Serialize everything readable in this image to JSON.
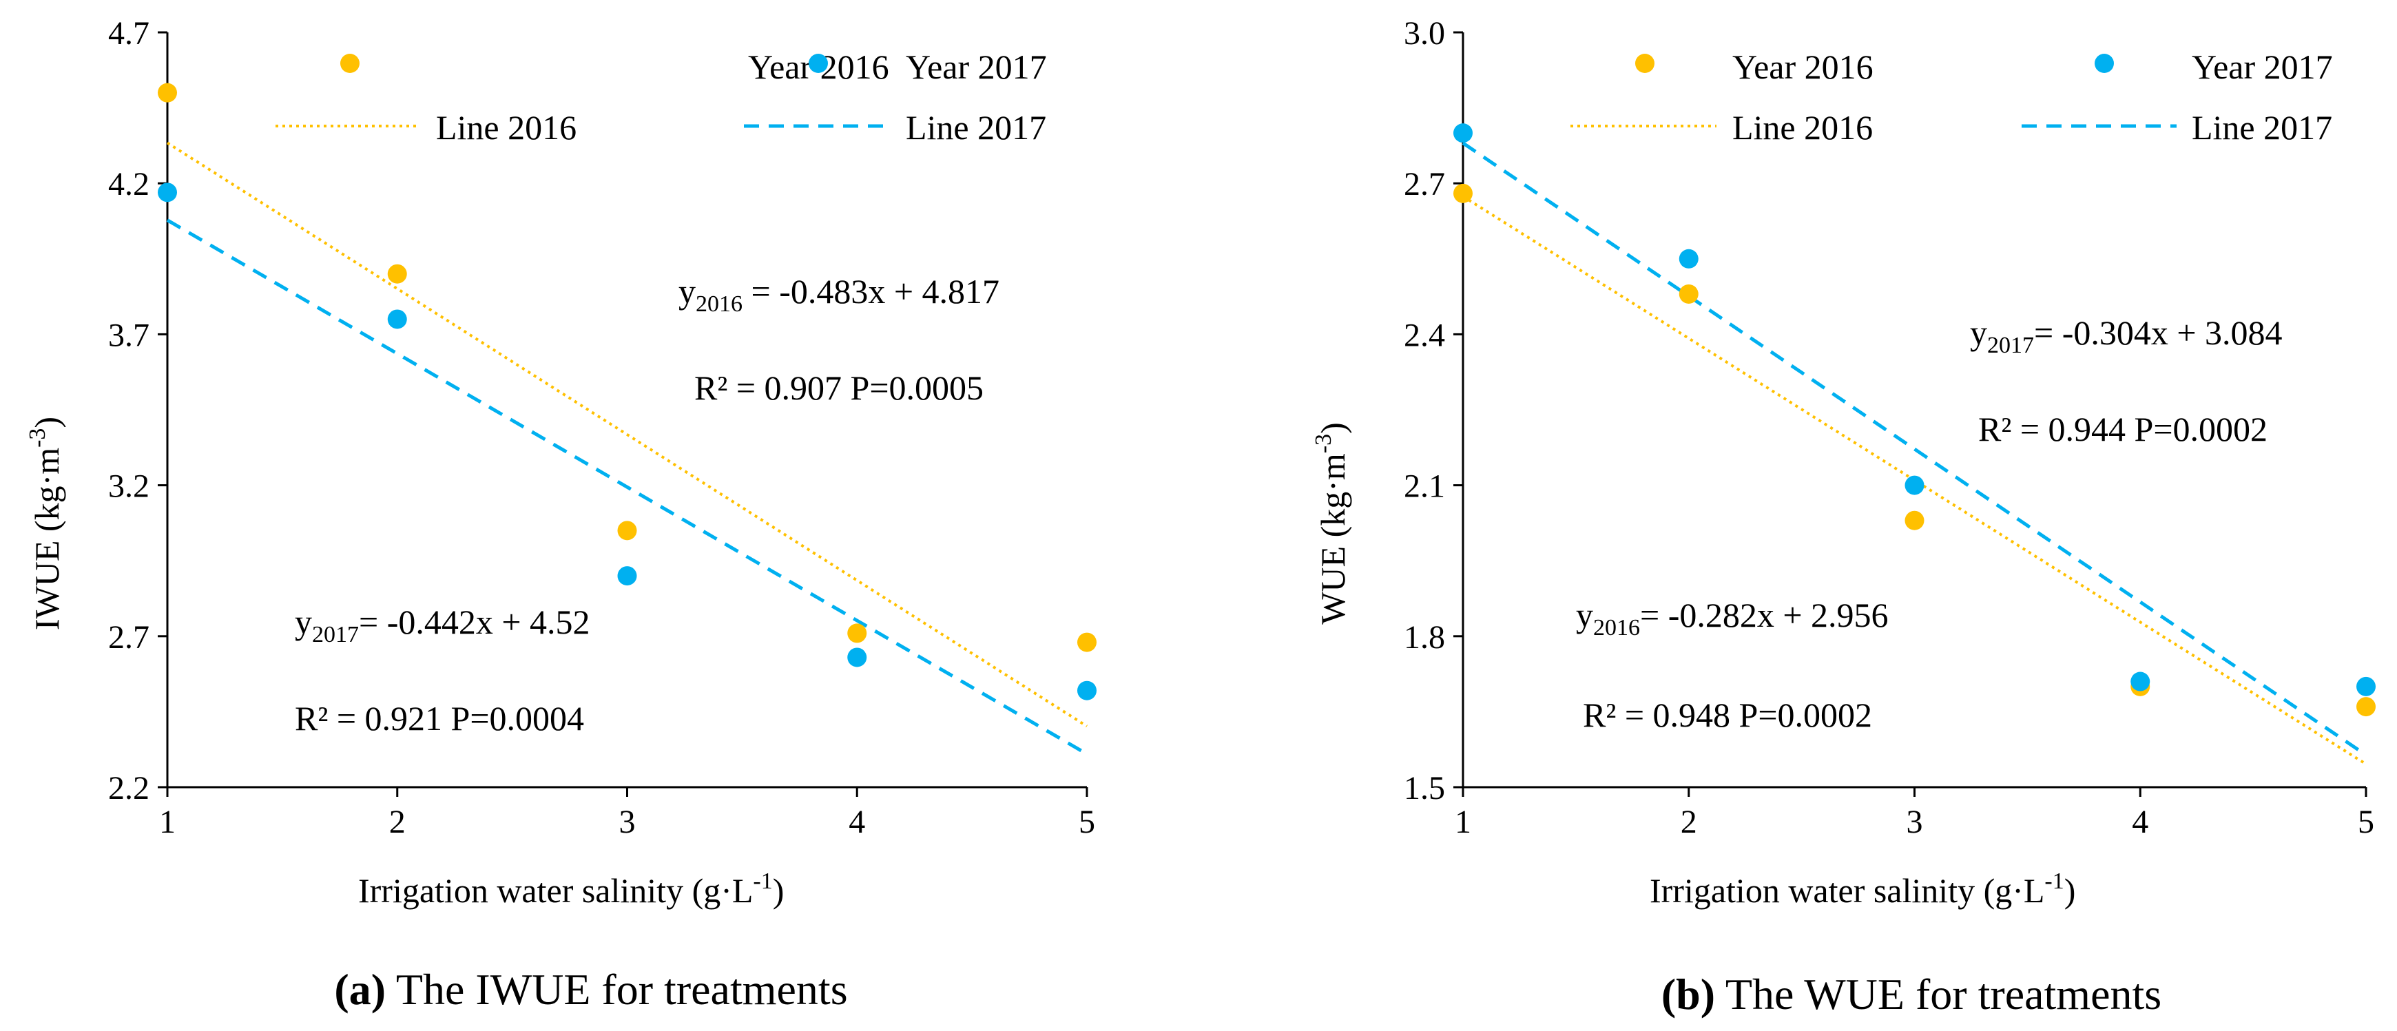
{
  "colors": {
    "y2016": "#FFC000",
    "y2017": "#00B0F0",
    "axis": "#000000"
  },
  "chart_data": [
    {
      "type": "scatter",
      "panel": "a",
      "xlabel": "Irrigation water salinity (g·L",
      "xlabel_sup": "-1",
      "xlabel_end": ")",
      "ylabel": "IWUE (kg·m",
      "ylabel_sup": "-3",
      "ylabel_end": ")",
      "xlim": [
        1,
        5
      ],
      "ylim": [
        2.2,
        4.7
      ],
      "xticks": [
        "1",
        "2",
        "3",
        "4",
        "5"
      ],
      "yticks": [
        "2.2",
        "2.7",
        "3.2",
        "3.7",
        "4.2",
        "4.7"
      ],
      "x": [
        1,
        2,
        3,
        4,
        5
      ],
      "series": [
        {
          "name": "Year 2016",
          "values": [
            4.5,
            3.9,
            3.05,
            2.71,
            2.68
          ]
        },
        {
          "name": "Year 2017",
          "values": [
            4.17,
            3.75,
            2.9,
            2.63,
            2.52
          ]
        }
      ],
      "trendlines": [
        {
          "name": "Line 2016",
          "slope": -0.483,
          "intercept": 4.817
        },
        {
          "name": "Line 2017",
          "slope": -0.442,
          "intercept": 4.52
        }
      ],
      "annotations": {
        "eq1_pre": "y",
        "eq1_sub": "2016",
        "eq1_post": " = -0.483x + 4.817",
        "r1": "R² = 0.907  P=0.0005",
        "eq2_pre": "y",
        "eq2_sub": "2017",
        "eq2_post": "= -0.442x + 4.52",
        "r2": "R² = 0.921  P=0.0004"
      },
      "caption_bold": "(a)",
      "caption_text": " The IWUE for treatments"
    },
    {
      "type": "scatter",
      "panel": "b",
      "xlabel": "Irrigation water salinity (g·L",
      "xlabel_sup": "-1",
      "xlabel_end": ")",
      "ylabel": "WUE (kg·m",
      "ylabel_sup": "-3",
      "ylabel_end": ")",
      "xlim": [
        1,
        5
      ],
      "ylim": [
        1.5,
        3.0
      ],
      "xticks": [
        "1",
        "2",
        "3",
        "4",
        "5"
      ],
      "yticks": [
        "1.5",
        "1.8",
        "2.1",
        "2.4",
        "2.7",
        "3.0"
      ],
      "x": [
        1,
        2,
        3,
        4,
        5
      ],
      "series": [
        {
          "name": "Year 2016",
          "values": [
            2.68,
            2.48,
            2.03,
            1.7,
            1.66
          ]
        },
        {
          "name": "Year 2017",
          "values": [
            2.8,
            2.55,
            2.1,
            1.71,
            1.7
          ]
        }
      ],
      "trendlines": [
        {
          "name": "Line 2016",
          "slope": -0.282,
          "intercept": 2.956
        },
        {
          "name": "Line 2017",
          "slope": -0.304,
          "intercept": 3.084
        }
      ],
      "annotations": {
        "eq1_pre": "y",
        "eq1_sub": "2017",
        "eq1_post": "= -0.304x + 3.084",
        "r1": "R² = 0.944  P=0.0002",
        "eq2_pre": "y",
        "eq2_sub": "2016",
        "eq2_post": "= -0.282x + 2.956",
        "r2": "R² = 0.948  P=0.0002"
      },
      "caption_bold": "(b)",
      "caption_text": " The WUE for treatments"
    }
  ]
}
